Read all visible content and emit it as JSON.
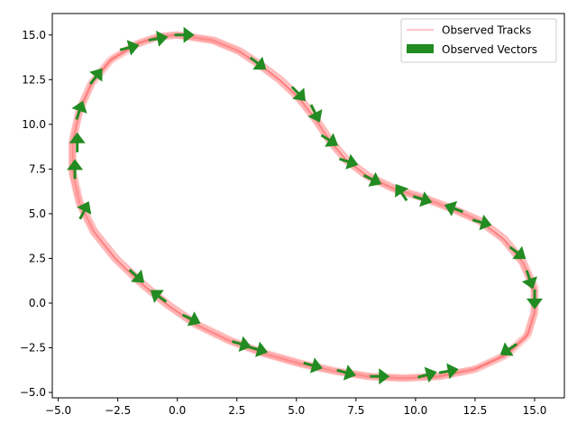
{
  "chart_data": {
    "type": "line",
    "title": "",
    "xlabel": "",
    "ylabel": "",
    "xlim": [
      -5.25,
      16.25
    ],
    "ylim": [
      -5.3,
      16.2
    ],
    "xticks": [
      -5.0,
      -2.5,
      0.0,
      2.5,
      5.0,
      7.5,
      10.0,
      12.5,
      15.0
    ],
    "yticks": [
      -5.0,
      -2.5,
      0.0,
      2.5,
      5.0,
      7.5,
      10.0,
      12.5,
      15.0
    ],
    "xtick_labels": [
      "−5.0",
      "−2.5",
      "0.0",
      "2.5",
      "5.0",
      "7.5",
      "10.0",
      "12.5",
      "15.0"
    ],
    "ytick_labels": [
      "−5.0",
      "−2.5",
      "0.0",
      "2.5",
      "5.0",
      "7.5",
      "10.0",
      "12.5",
      "15.0"
    ],
    "grid": false,
    "legend": {
      "placement": "top-right",
      "entries": [
        {
          "label": "Observed Tracks",
          "kind": "line",
          "color": "#ffb3b3"
        },
        {
          "label": "Observed Vectors",
          "kind": "patch",
          "color": "#228b22"
        }
      ]
    },
    "series": [
      {
        "name": "Observed Tracks",
        "color": "#ff4d4d",
        "points": [
          [
            0.0,
            15.0
          ],
          [
            1.5,
            14.7
          ],
          [
            2.6,
            14.1
          ],
          [
            3.5,
            13.3
          ],
          [
            4.3,
            12.5
          ],
          [
            5.1,
            11.5
          ],
          [
            5.8,
            10.3
          ],
          [
            6.4,
            9.1
          ],
          [
            7.1,
            8.0
          ],
          [
            8.0,
            7.1
          ],
          [
            9.1,
            6.4
          ],
          [
            10.3,
            5.9
          ],
          [
            11.5,
            5.3
          ],
          [
            12.7,
            4.6
          ],
          [
            13.7,
            3.6
          ],
          [
            14.5,
            2.3
          ],
          [
            15.0,
            0.8
          ],
          [
            15.0,
            -0.5
          ],
          [
            14.7,
            -1.8
          ],
          [
            13.8,
            -2.9
          ],
          [
            12.5,
            -3.7
          ],
          [
            11.0,
            -4.1
          ],
          [
            9.5,
            -4.2
          ],
          [
            8.0,
            -4.1
          ],
          [
            6.6,
            -3.8
          ],
          [
            5.2,
            -3.4
          ],
          [
            3.6,
            -2.8
          ],
          [
            2.2,
            -2.1
          ],
          [
            0.8,
            -1.2
          ],
          [
            -0.4,
            -0.1
          ],
          [
            -1.5,
            1.1
          ],
          [
            -2.6,
            2.5
          ],
          [
            -3.5,
            4.0
          ],
          [
            -4.1,
            5.6
          ],
          [
            -4.4,
            7.3
          ],
          [
            -4.4,
            9.0
          ],
          [
            -4.1,
            10.8
          ],
          [
            -3.6,
            12.3
          ],
          [
            -2.8,
            13.6
          ],
          [
            -1.7,
            14.5
          ],
          [
            -0.8,
            14.9
          ],
          [
            0.0,
            15.0
          ]
        ]
      }
    ],
    "vectors": {
      "name": "Observed Vectors",
      "color": "#228b22",
      "arrows": [
        [
          0.3,
          15.0,
          0.8,
          0.0
        ],
        [
          -0.8,
          14.8,
          0.9,
          0.2
        ],
        [
          -2.0,
          14.3,
          0.9,
          0.3
        ],
        [
          3.4,
          13.4,
          0.6,
          -0.6
        ],
        [
          5.1,
          11.7,
          0.5,
          -0.7
        ],
        [
          5.8,
          10.6,
          0.3,
          -0.8
        ],
        [
          6.4,
          9.1,
          0.6,
          -0.5
        ],
        [
          7.2,
          7.9,
          0.7,
          -0.3
        ],
        [
          8.2,
          6.9,
          0.6,
          -0.4
        ],
        [
          9.4,
          6.2,
          -0.5,
          1.0
        ],
        [
          10.3,
          5.8,
          0.7,
          -0.3
        ],
        [
          11.6,
          5.3,
          -0.8,
          0.4
        ],
        [
          12.8,
          4.5,
          0.8,
          -0.3
        ],
        [
          14.3,
          2.8,
          0.6,
          -0.6
        ],
        [
          14.8,
          1.3,
          0.2,
          -0.8
        ],
        [
          15.0,
          0.2,
          0.0,
          -0.8
        ],
        [
          13.9,
          -2.6,
          -0.7,
          -0.6
        ],
        [
          11.4,
          -3.8,
          0.8,
          0.2
        ],
        [
          10.5,
          -4.0,
          0.8,
          0.3
        ],
        [
          8.5,
          -4.1,
          0.8,
          0.0
        ],
        [
          7.1,
          -3.9,
          0.8,
          -0.3
        ],
        [
          5.7,
          -3.5,
          0.8,
          -0.3
        ],
        [
          3.4,
          -2.6,
          0.8,
          -0.3
        ],
        [
          2.7,
          -2.3,
          0.8,
          -0.3
        ],
        [
          0.6,
          -0.9,
          0.8,
          -0.5
        ],
        [
          -0.8,
          0.4,
          -0.6,
          0.6
        ],
        [
          -1.7,
          1.5,
          0.6,
          -0.7
        ],
        [
          -3.9,
          5.2,
          0.3,
          0.8
        ],
        [
          -4.3,
          7.5,
          0.0,
          0.8
        ],
        [
          -4.2,
          9.0,
          0.0,
          0.8
        ],
        [
          -4.1,
          10.8,
          0.2,
          0.8
        ],
        [
          -3.4,
          12.7,
          0.4,
          0.7
        ]
      ]
    }
  }
}
